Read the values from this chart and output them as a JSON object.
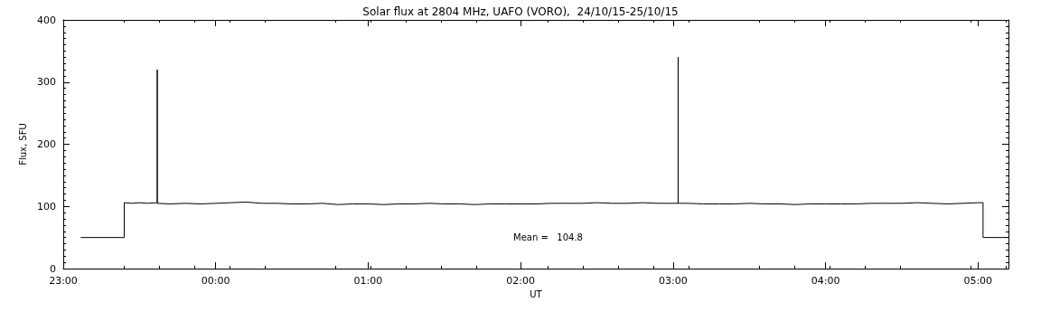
{
  "chart_data": {
    "type": "line",
    "title": "Solar flux at 2804 MHz, UAFO (VORO),  24/10/15-25/10/15",
    "xlabel": "UT",
    "ylabel": "Flux, SFU",
    "x": [
      "--10-24T23:07",
      "--10-24T23:24",
      "--10-24T23:24",
      "--10-24T23:27",
      "--10-24T23:30",
      "--10-24T23:33",
      "--10-24T23:37",
      "--10-24T23:37",
      "--10-24T23:37",
      "--10-24T23:42",
      "--10-24T23:48",
      "--10-24T23:54",
      "--10-25T00:00",
      "--10-25T00:06",
      "--10-25T00:12",
      "--10-25T00:18",
      "--10-25T00:24",
      "--10-25T00:30",
      "--10-25T00:36",
      "--10-25T00:42",
      "--10-25T00:48",
      "--10-25T00:54",
      "--10-25T01:00",
      "--10-25T01:06",
      "--10-25T01:12",
      "--10-25T01:18",
      "--10-25T01:24",
      "--10-25T01:30",
      "--10-25T01:36",
      "--10-25T01:42",
      "--10-25T01:48",
      "--10-25T01:54",
      "--10-25T02:00",
      "--10-25T02:06",
      "--10-25T02:12",
      "--10-25T02:18",
      "--10-25T02:24",
      "--10-25T02:30",
      "--10-25T02:36",
      "--10-25T02:42",
      "--10-25T02:48",
      "--10-25T02:54",
      "--10-25T03:02",
      "--10-25T03:02",
      "--10-25T03:02",
      "--10-25T03:06",
      "--10-25T03:12",
      "--10-25T03:18",
      "--10-25T03:24",
      "--10-25T03:30",
      "--10-25T03:36",
      "--10-25T03:42",
      "--10-25T03:48",
      "--10-25T03:54",
      "--10-25T04:00",
      "--10-25T04:06",
      "--10-25T04:12",
      "--10-25T04:18",
      "--10-25T04:24",
      "--10-25T04:30",
      "--10-25T04:36",
      "--10-25T04:42",
      "--10-25T04:48",
      "--10-25T04:54",
      "--10-25T05:00",
      "--10-25T05:02",
      "--10-25T05:02",
      "--10-25T05:12"
    ],
    "values": [
      50,
      50,
      106,
      105,
      106,
      105,
      106,
      320,
      105,
      104,
      105,
      104,
      105,
      106,
      107,
      105,
      105,
      104,
      104,
      105,
      103,
      104,
      104,
      103,
      104,
      104,
      105,
      104,
      104,
      103,
      104,
      104,
      104,
      104,
      105,
      105,
      105,
      106,
      105,
      105,
      106,
      105,
      105,
      340,
      105,
      105,
      104,
      104,
      104,
      105,
      104,
      104,
      103,
      104,
      104,
      104,
      104,
      105,
      105,
      105,
      106,
      105,
      104,
      105,
      106,
      106,
      50,
      50
    ],
    "color": "#000000",
    "line_style": "solid",
    "marker": "none",
    "grid": false,
    "xlim": [
      "--10-24T23:00",
      "--10-25T05:12"
    ],
    "xticks": [
      {
        "value": "--10-24T23:00",
        "label": "23:00"
      },
      {
        "value": "--10-25T00:00",
        "label": "00:00"
      },
      {
        "value": "--10-25T01:00",
        "label": "01:00"
      },
      {
        "value": "--10-25T02:00",
        "label": "02:00"
      },
      {
        "value": "--10-25T03:00",
        "label": "03:00"
      },
      {
        "value": "--10-25T04:00",
        "label": "04:00"
      },
      {
        "value": "--10-25T05:00",
        "label": "05:00"
      }
    ],
    "ylim": [
      0,
      400
    ],
    "yticks": [
      0,
      100,
      200,
      300,
      400
    ],
    "annotations": [
      "Mean =   104.8"
    ]
  }
}
